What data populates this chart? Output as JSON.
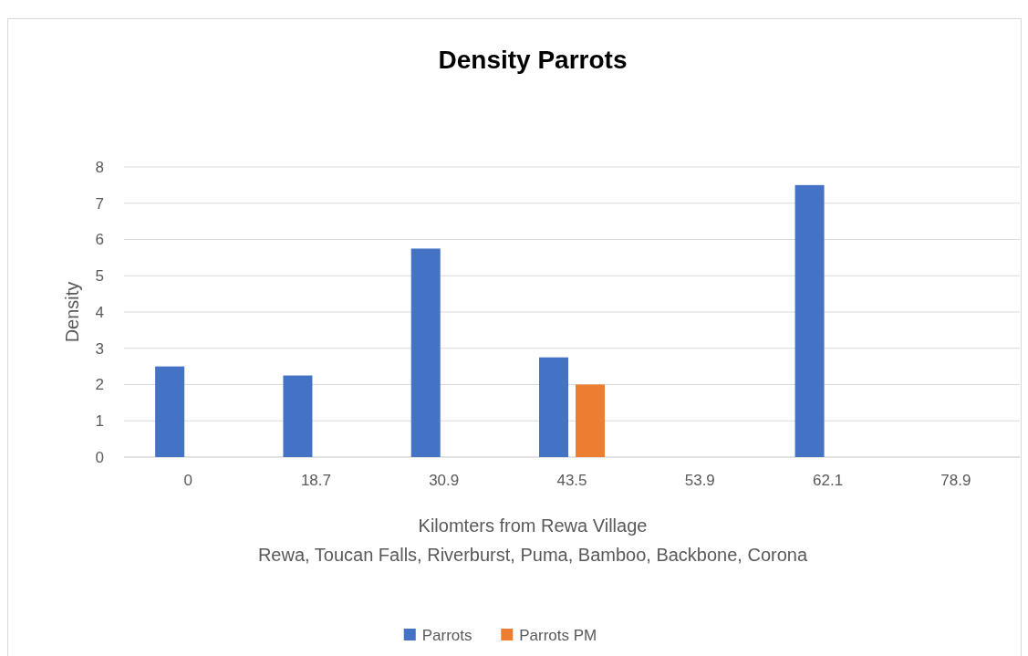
{
  "chart_data": {
    "type": "bar",
    "title": "Density Parrots",
    "xlabel": "Kilomters from Rewa Village\nRewa, Toucan Falls, Riverburst, Puma, Bamboo, Backbone, Corona",
    "ylabel": "Density",
    "categories": [
      "0",
      "18.7",
      "30.9",
      "43.5",
      "53.9",
      "62.1",
      "78.9"
    ],
    "series": [
      {
        "name": "Parrots",
        "color": "#4472c4",
        "values": [
          2.5,
          2.25,
          5.75,
          2.75,
          null,
          7.5,
          null
        ]
      },
      {
        "name": "Parrots PM",
        "color": "#ed7d31",
        "values": [
          null,
          null,
          null,
          2,
          null,
          null,
          null
        ]
      }
    ],
    "ylim": [
      0,
      8
    ],
    "yticks": [
      0,
      1,
      2,
      3,
      4,
      5,
      6,
      7,
      8
    ],
    "grid": "y",
    "legend": "bottom"
  }
}
